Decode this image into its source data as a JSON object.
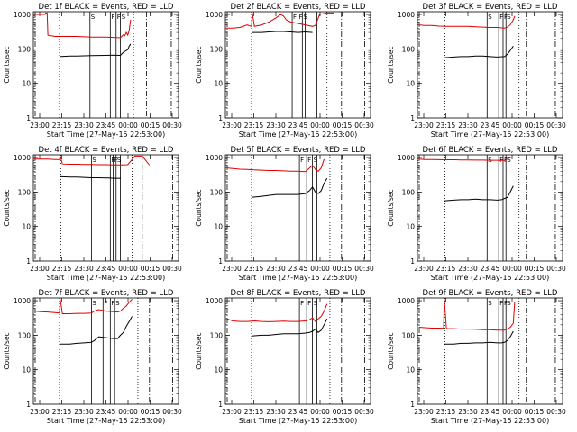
{
  "figure": {
    "xlabel": "Start Time (27-May-15 22:53:00)",
    "ylabel": "Counts/sec",
    "x_ticks": [
      "23:00",
      "23:15",
      "23:30",
      "23:45",
      "00:00",
      "00:15",
      "00:30"
    ],
    "y_ticks": [
      "1",
      "10",
      "100",
      "1000"
    ],
    "colors": {
      "events": "#000000",
      "lld": "#e00000"
    }
  },
  "chart_data": [
    {
      "type": "line",
      "title": "Det 1f BLACK = Events, RED = LLD",
      "xlim_min": [
        0,
        100
      ],
      "ylim": [
        1,
        1200
      ],
      "y_scale": "log",
      "series": [
        {
          "key": "events",
          "x": [
            18,
            25,
            30,
            40,
            50,
            55,
            60,
            62,
            65,
            66,
            67
          ],
          "y": [
            60,
            62,
            62,
            64,
            65,
            66,
            65,
            80,
            95,
            120,
            140
          ]
        },
        {
          "key": "lld",
          "x": [
            1,
            8,
            8.5,
            9.5,
            10,
            15,
            20,
            30,
            40,
            50,
            55,
            60,
            62,
            63,
            64,
            65,
            66,
            67
          ],
          "y": [
            1000,
            1000,
            1100,
            1100,
            250,
            230,
            230,
            230,
            220,
            220,
            215,
            210,
            260,
            240,
            300,
            250,
            350,
            700
          ]
        }
      ],
      "vlines_solid": [
        39,
        53,
        57,
        60
      ],
      "vlines_dotted": [
        18,
        69
      ],
      "vlines_dashdot": [
        78,
        95
      ],
      "markers": [
        "S",
        "F",
        "F",
        "S"
      ]
    },
    {
      "type": "line",
      "title": "Det 2f BLACK = Events, RED = LLD",
      "xlim_min": [
        0,
        100
      ],
      "ylim": [
        1,
        1200
      ],
      "y_scale": "log",
      "series": [
        {
          "key": "events",
          "x": [
            18,
            25,
            30,
            35,
            40,
            45,
            50,
            55,
            60
          ],
          "y": [
            300,
            300,
            310,
            320,
            320,
            310,
            300,
            310,
            300
          ]
        },
        {
          "key": "lld",
          "x": [
            0,
            5,
            10,
            15,
            18,
            18.5,
            20,
            25,
            30,
            35,
            38,
            40,
            42,
            45,
            50,
            55,
            60,
            62,
            65,
            70,
            75
          ],
          "y": [
            400,
            400,
            420,
            500,
            450,
            1100,
            450,
            500,
            600,
            800,
            1000,
            900,
            700,
            600,
            550,
            500,
            450,
            480,
            1000,
            1100,
            1100
          ]
        }
      ],
      "vlines_solid": [
        46,
        50,
        53,
        55,
        63
      ],
      "vlines_dotted": [
        18,
        70
      ],
      "vlines_dashdot": [
        80,
        96
      ],
      "markers": [
        "F",
        "F",
        "S"
      ]
    },
    {
      "type": "line",
      "title": "Det 3f BLACK = Events, RED = LLD",
      "xlim_min": [
        0,
        100
      ],
      "ylim": [
        1,
        1200
      ],
      "y_scale": "log",
      "series": [
        {
          "key": "events",
          "x": [
            18,
            25,
            30,
            35,
            40,
            45,
            50,
            55,
            60,
            62,
            64,
            66
          ],
          "y": [
            55,
            58,
            60,
            60,
            62,
            62,
            60,
            58,
            60,
            70,
            90,
            120
          ]
        },
        {
          "key": "lld",
          "x": [
            1,
            5,
            10,
            15,
            20,
            25,
            30,
            35,
            40,
            45,
            50,
            55,
            60,
            62,
            64,
            66,
            67
          ],
          "y": [
            500,
            480,
            480,
            460,
            450,
            450,
            450,
            450,
            440,
            430,
            420,
            420,
            400,
            430,
            500,
            700,
            900
          ]
        }
      ],
      "vlines_solid": [
        48,
        56,
        59,
        61
      ],
      "vlines_dotted": [
        19,
        70
      ],
      "vlines_dashdot": [
        75,
        95
      ],
      "markers": [
        "S",
        "F",
        "F",
        "S"
      ]
    },
    {
      "type": "line",
      "title": "Det 4f BLACK = Events, RED = LLD",
      "xlim_min": [
        0,
        100
      ],
      "ylim": [
        1,
        1200
      ],
      "y_scale": "log",
      "series": [
        {
          "key": "events",
          "x": [
            18,
            25,
            30,
            35,
            40,
            45,
            50,
            52,
            55,
            60
          ],
          "y": [
            280,
            270,
            270,
            265,
            260,
            260,
            255,
            255,
            250,
            250
          ]
        },
        {
          "key": "lld",
          "x": [
            0,
            5,
            10,
            15,
            18,
            18.5,
            20,
            25,
            30,
            35,
            40,
            45,
            50,
            55,
            60,
            65,
            70,
            75,
            80
          ],
          "y": [
            900,
            900,
            900,
            880,
            880,
            1100,
            650,
            640,
            640,
            630,
            630,
            620,
            620,
            610,
            610,
            620,
            1100,
            1100,
            600
          ]
        }
      ],
      "vlines_solid": [
        40,
        53,
        55,
        57,
        60
      ],
      "vlines_dotted": [
        19,
        68
      ],
      "vlines_dashdot": [
        75,
        96
      ],
      "markers": [
        "S",
        "F",
        "F",
        "S"
      ]
    },
    {
      "type": "line",
      "title": "Det 5f BLACK = Events, RED = LLD",
      "xlim_min": [
        0,
        100
      ],
      "ylim": [
        1,
        1200
      ],
      "y_scale": "log",
      "series": [
        {
          "key": "events",
          "x": [
            18,
            25,
            30,
            35,
            40,
            45,
            50,
            55,
            58,
            60,
            62,
            64,
            66,
            68,
            70
          ],
          "y": [
            70,
            75,
            80,
            85,
            85,
            85,
            85,
            90,
            110,
            140,
            100,
            90,
            110,
            180,
            250
          ]
        },
        {
          "key": "lld",
          "x": [
            1,
            5,
            10,
            15,
            20,
            25,
            30,
            35,
            40,
            45,
            50,
            55,
            58,
            60,
            62,
            64,
            66,
            68
          ],
          "y": [
            500,
            480,
            460,
            450,
            440,
            430,
            420,
            420,
            410,
            400,
            400,
            390,
            500,
            600,
            450,
            400,
            500,
            900
          ]
        }
      ],
      "vlines_solid": [
        51,
        56,
        60,
        63
      ],
      "vlines_dotted": [
        18,
        72
      ],
      "vlines_dashdot": [
        80,
        96
      ],
      "markers": [
        "F",
        "F",
        "S"
      ]
    },
    {
      "type": "line",
      "title": "Det 6f BLACK = Events, RED = LLD",
      "xlim_min": [
        0,
        100
      ],
      "ylim": [
        1,
        1200
      ],
      "y_scale": "log",
      "series": [
        {
          "key": "events",
          "x": [
            18,
            25,
            30,
            35,
            40,
            45,
            50,
            55,
            58,
            60,
            62,
            64,
            66
          ],
          "y": [
            55,
            58,
            60,
            60,
            62,
            60,
            60,
            58,
            60,
            65,
            70,
            100,
            150
          ]
        },
        {
          "key": "lld",
          "x": [
            1,
            5,
            10,
            15,
            20,
            25,
            30,
            35,
            40,
            45,
            50,
            55,
            60,
            62,
            64,
            66
          ],
          "y": [
            900,
            880,
            880,
            870,
            860,
            860,
            850,
            850,
            840,
            840,
            830,
            830,
            820,
            900,
            1000,
            1050
          ]
        }
      ],
      "vlines_solid": [
        48,
        56,
        59,
        61
      ],
      "vlines_dotted": [
        19,
        70
      ],
      "vlines_dashdot": [
        75,
        95
      ],
      "markers": [
        "S",
        "F",
        "F",
        "S"
      ]
    },
    {
      "type": "line",
      "title": "Det 7f BLACK = Events, RED = LLD",
      "xlim_min": [
        0,
        100
      ],
      "ylim": [
        1,
        1200
      ],
      "y_scale": "log",
      "series": [
        {
          "key": "events",
          "x": [
            18,
            25,
            30,
            35,
            40,
            42,
            45,
            50,
            55,
            58,
            60,
            62,
            64,
            66,
            68
          ],
          "y": [
            55,
            55,
            58,
            60,
            62,
            70,
            90,
            85,
            80,
            80,
            100,
            120,
            180,
            250,
            350
          ]
        },
        {
          "key": "lld",
          "x": [
            1,
            5,
            10,
            15,
            18,
            18.5,
            20,
            25,
            30,
            35,
            40,
            42,
            45,
            50,
            55,
            58,
            60,
            62,
            64,
            66,
            68
          ],
          "y": [
            500,
            480,
            470,
            450,
            440,
            1100,
            420,
            420,
            430,
            430,
            440,
            500,
            550,
            500,
            480,
            470,
            500,
            600,
            700,
            900,
            1100
          ]
        }
      ],
      "vlines_solid": [
        40,
        48,
        53,
        56
      ],
      "vlines_dotted": [
        18,
        72
      ],
      "vlines_dashdot": [
        80,
        96
      ],
      "markers": [
        "S",
        "F",
        "F",
        "S"
      ]
    },
    {
      "type": "line",
      "title": "Det 8f BLACK = Events, RED = LLD",
      "xlim_min": [
        0,
        100
      ],
      "ylim": [
        1,
        1200
      ],
      "y_scale": "log",
      "series": [
        {
          "key": "events",
          "x": [
            18,
            25,
            30,
            35,
            40,
            45,
            50,
            55,
            58,
            60,
            62,
            64,
            66,
            68,
            70
          ],
          "y": [
            95,
            100,
            100,
            105,
            110,
            110,
            110,
            115,
            120,
            130,
            150,
            120,
            140,
            200,
            300
          ]
        },
        {
          "key": "lld",
          "x": [
            1,
            5,
            10,
            15,
            20,
            25,
            30,
            35,
            40,
            45,
            50,
            55,
            58,
            60,
            62,
            64,
            66,
            68,
            70
          ],
          "y": [
            300,
            260,
            250,
            250,
            260,
            250,
            245,
            250,
            255,
            250,
            250,
            260,
            280,
            320,
            250,
            300,
            350,
            500,
            800
          ]
        }
      ],
      "vlines_solid": [
        51,
        56,
        60,
        63
      ],
      "vlines_dotted": [
        18,
        72
      ],
      "vlines_dashdot": [
        80,
        96
      ],
      "markers": [
        "F",
        "F",
        "S"
      ]
    },
    {
      "type": "line",
      "title": "Det 9f BLACK = Events, RED = LLD",
      "xlim_min": [
        0,
        100
      ],
      "ylim": [
        1,
        1200
      ],
      "y_scale": "log",
      "series": [
        {
          "key": "events",
          "x": [
            18,
            25,
            30,
            35,
            40,
            45,
            50,
            55,
            58,
            60,
            62,
            64,
            66
          ],
          "y": [
            55,
            55,
            58,
            58,
            60,
            60,
            62,
            60,
            60,
            62,
            70,
            90,
            130
          ]
        },
        {
          "key": "lld",
          "x": [
            1,
            5,
            10,
            15,
            18,
            18.5,
            20,
            25,
            30,
            35,
            40,
            45,
            50,
            55,
            60,
            62,
            64,
            66,
            67
          ],
          "y": [
            170,
            165,
            160,
            160,
            158,
            1100,
            155,
            155,
            150,
            150,
            148,
            145,
            145,
            140,
            140,
            150,
            170,
            220,
            900
          ]
        }
      ],
      "vlines_solid": [
        48,
        56,
        59,
        61
      ],
      "vlines_dotted": [
        19,
        70
      ],
      "vlines_dashdot": [
        75,
        95
      ],
      "markers": [
        "S",
        "F",
        "F",
        "S"
      ]
    }
  ]
}
